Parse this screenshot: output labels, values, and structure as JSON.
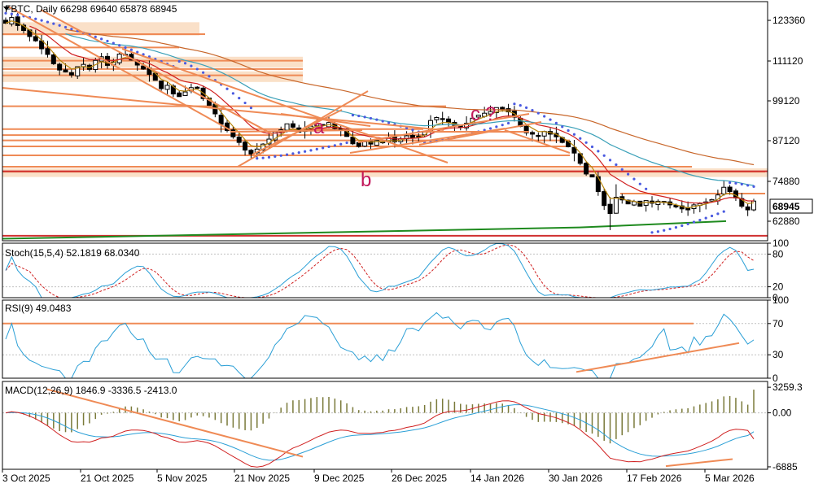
{
  "colors": {
    "bg": "#ffffff",
    "frame": "#000000",
    "grid_text": "#000000",
    "candle": "#000000",
    "sar": "#4a5ae0",
    "ma_fast": "#b8860b",
    "ma_mid": "#d02020",
    "ma_teal": "#3aa0b8",
    "ma_slow": "#c8662a",
    "trend": "#ef8a55",
    "zone": "#f8d5b5",
    "support": "#1e8a1e",
    "bline": "#d03030",
    "label": "#c2185b",
    "stoch_main": "#2a9fd6",
    "stoch_signal": "#d02020",
    "rsi": "#2a9fd6",
    "level": "#ef8a55",
    "macd_hist": "#7a7a3a",
    "macd_main": "#d02020",
    "macd_signal": "#2a9fd6"
  },
  "chart_data": [
    {
      "type": "candlestick",
      "title": "FBTC, Daily  66298 69640 65878 68945",
      "symbol": "FBTC",
      "timeframe": "Daily",
      "ohlc_last": [
        66298,
        69640,
        65878,
        68945
      ],
      "last_price": "68945",
      "ylim": [
        57000,
        129000
      ],
      "yticks": [
        "123360",
        "111120",
        "99120",
        "87120",
        "74880",
        "62880"
      ],
      "ytick_values": [
        123360,
        111120,
        99120,
        87120,
        74880,
        62880
      ],
      "xtick_labels": [
        "3 Oct 2025",
        "21 Oct 2025",
        "5 Nov 2025",
        "21 Nov 2025",
        "9 Dec 2025",
        "26 Dec 2025",
        "14 Jan 2026",
        "30 Jan 2026",
        "17 Feb 2026",
        "5 Mar 2026"
      ],
      "annotations": [
        "a",
        "c",
        "?",
        "b"
      ],
      "close": [
        122500,
        124200,
        121800,
        120300,
        118500,
        117200,
        114800,
        113100,
        110300,
        108400,
        107800,
        106900,
        109400,
        110100,
        108600,
        111300,
        112400,
        109800,
        110800,
        113200,
        112900,
        111400,
        109900,
        108700,
        107100,
        105300,
        102800,
        103800,
        101200,
        100400,
        101800,
        103100,
        102900,
        99800,
        97800,
        95200,
        92100,
        90200,
        88300,
        86600,
        84300,
        83100,
        84600,
        86100,
        87600,
        89800,
        90400,
        92200,
        91200,
        89700,
        90800,
        91500,
        92300,
        91700,
        92600,
        90800,
        90300,
        88400,
        86200,
        85400,
        86800,
        86100,
        87200,
        86500,
        87900,
        86800,
        87700,
        88600,
        87900,
        88500,
        89700,
        93200,
        94100,
        93500,
        92600,
        91700,
        91200,
        92400,
        93900,
        94800,
        95400,
        95900,
        97100,
        96600,
        95800,
        94200,
        91400,
        89500,
        89100,
        88400,
        89900,
        89100,
        88300,
        86600,
        85300,
        83400,
        80300,
        77100,
        76200,
        71800,
        67600,
        65200,
        70100,
        69300,
        68100,
        68800,
        67400,
        69100,
        68300,
        68900,
        68500,
        67800,
        67200,
        66600,
        66300,
        67800,
        68200,
        68700,
        69400,
        70800,
        73100,
        71800,
        69900,
        67400,
        66300,
        68945
      ]
    },
    {
      "type": "line",
      "title": "Stoch(15,5,4) 52.1819 68.0340",
      "series": [
        {
          "name": "Main",
          "value": 52.1819
        },
        {
          "name": "Signal",
          "value": 68.034
        }
      ],
      "ylim": [
        0,
        100
      ],
      "yticks": [
        "100",
        "80",
        "20",
        "0"
      ],
      "ytick_values": [
        100,
        80,
        20,
        0
      ]
    },
    {
      "type": "line",
      "title": "RSI(9) 49.0483",
      "series": [
        {
          "name": "RSI",
          "value": 49.0483
        }
      ],
      "ylim": [
        0,
        100
      ],
      "yticks": [
        "100",
        "70",
        "30",
        "0"
      ],
      "ytick_values": [
        100,
        70,
        30,
        0
      ]
    },
    {
      "type": "bar",
      "title": "MACD(12,26,9) 1846.9 -3336.5 -2413.0",
      "series": [
        {
          "name": "Histogram",
          "value": 1846.9
        },
        {
          "name": "MACD",
          "value": -3336.5
        },
        {
          "name": "Signal",
          "value": -2413.0
        }
      ],
      "ylim": [
        -7200,
        4000
      ],
      "yticks": [
        "3259.3",
        "0.00",
        "-6885"
      ],
      "ytick_values": [
        3259.3,
        0,
        -6885
      ]
    }
  ]
}
